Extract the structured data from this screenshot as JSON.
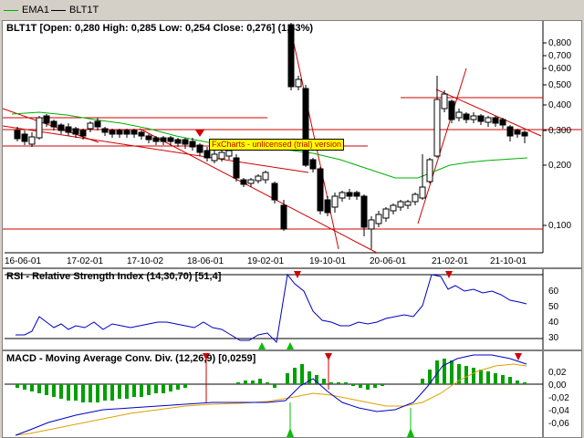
{
  "legend": {
    "ema1": "EMA1",
    "blt1t": "BLT1T",
    "ema_color": "#00b000",
    "price_color": "#000000"
  },
  "price_panel": {
    "title": "BLT1T [Open: 0,280  High: 0,285  Low: 0,254  Close: 0,276] (1,43%)",
    "y_ticks": [
      "0,800",
      "0,700",
      "0,600",
      "0,500",
      "0,400",
      "0,300",
      "0,200",
      "0,100"
    ],
    "x_ticks": [
      "16-06-01",
      "17-02-01",
      "17-10-02",
      "18-06-01",
      "19-02-01",
      "19-10-01",
      "20-06-01",
      "21-02-01",
      "21-10-01"
    ],
    "watermark": "FxCharts - unlicensed (trial) version"
  },
  "rsi_panel": {
    "title": "RSI - Relative Strength Index (14,30,70) [51,4]",
    "y_ticks": [
      "60",
      "50",
      "40",
      "30"
    ],
    "color": "#0000c0"
  },
  "macd_panel": {
    "title": "MACD - Moving Average Conv. Div. (12,26,9) [0,0259]",
    "y_ticks": [
      "0,02",
      "0,00",
      "-0,02",
      "-0,04",
      "-0,06"
    ],
    "macd_color": "#0000c0",
    "signal_color": "#e0a000",
    "hist_color": "#00a000"
  }
}
